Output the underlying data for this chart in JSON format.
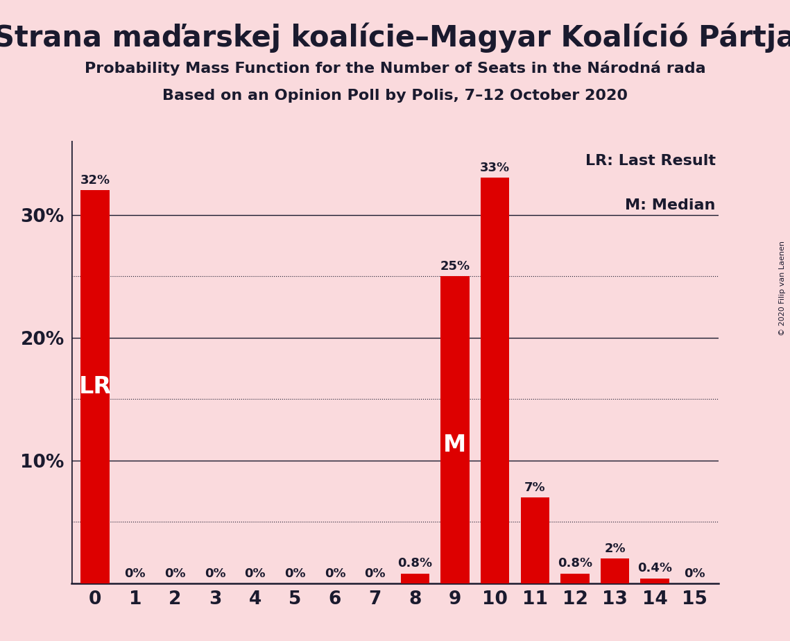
{
  "title": "Strana maďarskej koalície–Magyar Koalíció Pártja",
  "subtitle1": "Probability Mass Function for the Number of Seats in the Národná rada",
  "subtitle2": "Based on an Opinion Poll by Polis, 7–12 October 2020",
  "copyright": "© 2020 Filip van Laenen",
  "categories": [
    0,
    1,
    2,
    3,
    4,
    5,
    6,
    7,
    8,
    9,
    10,
    11,
    12,
    13,
    14,
    15
  ],
  "values": [
    32,
    0,
    0,
    0,
    0,
    0,
    0,
    0,
    0.8,
    25,
    33,
    7,
    0.8,
    2,
    0.4,
    0
  ],
  "labels": [
    "32%",
    "0%",
    "0%",
    "0%",
    "0%",
    "0%",
    "0%",
    "0%",
    "0.8%",
    "25%",
    "33%",
    "7%",
    "0.8%",
    "2%",
    "0.4%",
    "0%"
  ],
  "bar_color": "#dd0000",
  "background_color": "#fadadd",
  "title_color": "#1a1a2e",
  "lr_bar_index": 0,
  "lr_label": "LR",
  "median_bar_index": 9,
  "median_label": "M",
  "yticks": [
    0,
    10,
    20,
    30
  ],
  "ytick_labels": [
    "",
    "10%",
    "20%",
    "30%"
  ],
  "ylim": [
    0,
    36
  ],
  "legend_text1": "LR: Last Result",
  "legend_text2": "M: Median",
  "title_fontsize": 30,
  "subtitle_fontsize": 16,
  "bar_label_fontsize": 13,
  "axis_label_fontsize": 19,
  "legend_fontsize": 16,
  "lr_inside_fontsize": 24,
  "m_inside_fontsize": 24
}
